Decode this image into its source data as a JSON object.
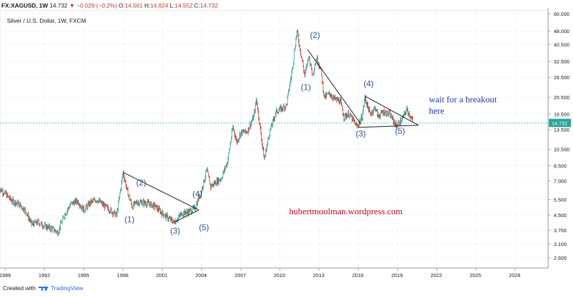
{
  "header": {
    "symbol": "FX:XAGUSD, 1W",
    "last": "14.732",
    "change": "▼ −0.029 (−0.2%)",
    "o_label": "O:",
    "o_value": "14.561",
    "h_label": "H:",
    "h_value": "14.824",
    "l_label": "L:",
    "l_value": "14.552",
    "c_label": "C:",
    "c_value": "14.732"
  },
  "subtitle": "Silver / U.S. Dollar, 1W, FXCM",
  "footer": {
    "created_with": "Created with",
    "brand": "TradingView"
  },
  "colors": {
    "up": "#26a69a",
    "down": "#c0392b",
    "price_line": "#26a69a",
    "trendline": "#131722",
    "annotation_blue": "#1b2fc4",
    "annotation_red": "#d0021b",
    "wave_label": "#2b4f8a"
  },
  "chart_data": {
    "type": "line",
    "scale": "log",
    "x_ticks": [
      "1989",
      "1992",
      "1995",
      "1998",
      "2001",
      "2004",
      "2007",
      "2010",
      "2013",
      "2016",
      "2019",
      "2022",
      "2025",
      "2028"
    ],
    "y_ticks": [
      "60.000",
      "48.000",
      "40.500",
      "32.500",
      "26.500",
      "20.500",
      "16.500",
      "13.500",
      "10.500",
      "8.500",
      "7.000",
      "5.500",
      "4.500",
      "3.700",
      "3.100",
      "2.600"
    ],
    "last_price": {
      "label": "14.732",
      "value": 14.732
    },
    "series": [
      {
        "values": [
          [
            1988.5,
            6.4
          ],
          [
            1989.0,
            5.9
          ],
          [
            1989.5,
            5.4
          ],
          [
            1990.0,
            5.2
          ],
          [
            1990.5,
            4.8
          ],
          [
            1991.0,
            4.0
          ],
          [
            1991.5,
            4.1
          ],
          [
            1992.0,
            3.9
          ],
          [
            1992.5,
            3.8
          ],
          [
            1993.0,
            3.6
          ],
          [
            1993.5,
            4.5
          ],
          [
            1994.0,
            5.2
          ],
          [
            1994.5,
            5.4
          ],
          [
            1995.0,
            4.8
          ],
          [
            1995.5,
            5.3
          ],
          [
            1996.0,
            5.5
          ],
          [
            1996.5,
            5.1
          ],
          [
            1997.0,
            4.8
          ],
          [
            1997.5,
            4.5
          ],
          [
            1998.0,
            7.8
          ],
          [
            1998.3,
            6.2
          ],
          [
            1998.7,
            5.0
          ],
          [
            1999.0,
            5.3
          ],
          [
            1999.5,
            5.3
          ],
          [
            2000.0,
            5.2
          ],
          [
            2000.5,
            5.0
          ],
          [
            2001.0,
            4.6
          ],
          [
            2001.5,
            4.3
          ],
          [
            2001.9,
            4.1
          ],
          [
            2002.5,
            4.6
          ],
          [
            2003.0,
            4.7
          ],
          [
            2003.5,
            4.9
          ],
          [
            2004.0,
            6.2
          ],
          [
            2004.4,
            8.0
          ],
          [
            2004.7,
            6.5
          ],
          [
            2005.0,
            6.8
          ],
          [
            2005.5,
            7.2
          ],
          [
            2006.0,
            9.0
          ],
          [
            2006.4,
            14.0
          ],
          [
            2006.7,
            11.5
          ],
          [
            2007.0,
            13.0
          ],
          [
            2007.5,
            13.2
          ],
          [
            2008.0,
            16.0
          ],
          [
            2008.2,
            20.0
          ],
          [
            2008.8,
            9.2
          ],
          [
            2009.2,
            13.0
          ],
          [
            2009.7,
            17.0
          ],
          [
            2010.0,
            17.5
          ],
          [
            2010.5,
            18.5
          ],
          [
            2010.9,
            28.0
          ],
          [
            2011.3,
            48.0
          ],
          [
            2011.7,
            33.0
          ],
          [
            2011.9,
            27.0
          ],
          [
            2012.2,
            35.0
          ],
          [
            2012.5,
            27.5
          ],
          [
            2012.8,
            34.0
          ],
          [
            2013.1,
            30.0
          ],
          [
            2013.4,
            20.5
          ],
          [
            2013.8,
            21.5
          ],
          [
            2014.2,
            20.0
          ],
          [
            2014.6,
            19.5
          ],
          [
            2014.9,
            16.0
          ],
          [
            2015.3,
            16.5
          ],
          [
            2015.9,
            14.0
          ],
          [
            2016.3,
            16.0
          ],
          [
            2016.5,
            20.5
          ],
          [
            2016.9,
            16.5
          ],
          [
            2017.3,
            18.0
          ],
          [
            2017.5,
            16.0
          ],
          [
            2017.9,
            17.0
          ],
          [
            2018.4,
            16.5
          ],
          [
            2018.9,
            14.2
          ],
          [
            2019.3,
            15.2
          ],
          [
            2019.7,
            17.5
          ],
          [
            2020.0,
            16.0
          ],
          [
            2020.2,
            14.732
          ]
        ]
      }
    ],
    "annotations": {
      "waves_early": [
        "(1)",
        "(2)",
        "(3)",
        "(4)",
        "(5)"
      ],
      "waves_late": [
        "(1)",
        "(2)",
        "(3)",
        "(4)",
        "(5)"
      ],
      "note_line1": "wait for a breakout",
      "note_line2": "here",
      "site": "hubertmoolman.wordpress.com"
    },
    "trendlines": [
      {
        "from": [
          1998.0,
          7.8
        ],
        "to": [
          2003.8,
          4.8
        ]
      },
      {
        "from": [
          2001.9,
          4.1
        ],
        "to": [
          2003.8,
          4.8
        ]
      },
      {
        "from": [
          2012.1,
          38.0
        ],
        "to": [
          2016.2,
          14.5
        ]
      },
      {
        "from": [
          2016.5,
          20.8
        ],
        "to": [
          2020.6,
          14.3
        ]
      },
      {
        "from": [
          2016.0,
          13.9
        ],
        "to": [
          2020.6,
          14.3
        ]
      }
    ],
    "grid": true
  }
}
